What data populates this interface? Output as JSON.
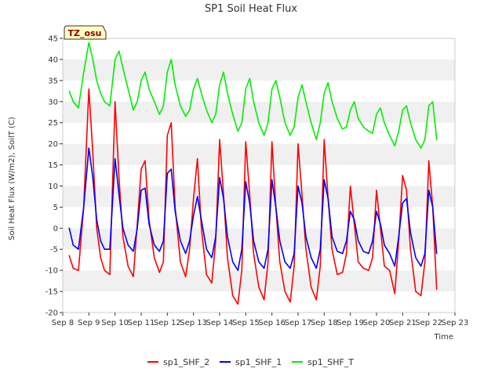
{
  "chart_data": {
    "type": "line",
    "title": "SP1 Soil Heat Flux",
    "xlabel": "Time",
    "ylabel": "Soil Heat Flux (W/m2), SoilT (C)",
    "timezone_label": "TZ_osu",
    "xlim": [
      8,
      23
    ],
    "ylim": [
      -20,
      45
    ],
    "x_ticks": [
      8,
      9,
      10,
      11,
      12,
      13,
      14,
      15,
      16,
      17,
      18,
      19,
      20,
      21,
      22,
      23
    ],
    "x_tick_labels": [
      "Sep 8",
      "Sep 9",
      "Sep 10",
      "Sep 11",
      "Sep 12",
      "Sep 13",
      "Sep 14",
      "Sep 15",
      "Sep 16",
      "Sep 17",
      "Sep 18",
      "Sep 19",
      "Sep 20",
      "Sep 21",
      "Sep 22",
      "Sep 23"
    ],
    "y_ticks": [
      -20,
      -15,
      -10,
      -5,
      0,
      5,
      10,
      15,
      20,
      25,
      30,
      35,
      40,
      45
    ],
    "grid": "horizontal alternating bands",
    "legend_position": "bottom-center",
    "series": [
      {
        "name": "sp1_SHF_2",
        "color": "#ff0000",
        "x": [
          8.25,
          8.4,
          8.6,
          8.8,
          9.0,
          9.15,
          9.3,
          9.45,
          9.6,
          9.8,
          10.0,
          10.15,
          10.3,
          10.5,
          10.7,
          10.85,
          11.0,
          11.15,
          11.3,
          11.5,
          11.7,
          11.85,
          12.0,
          12.15,
          12.3,
          12.5,
          12.7,
          12.85,
          13.0,
          13.15,
          13.3,
          13.5,
          13.7,
          13.85,
          14.0,
          14.15,
          14.3,
          14.5,
          14.7,
          14.85,
          15.0,
          15.15,
          15.3,
          15.5,
          15.7,
          15.85,
          16.0,
          16.15,
          16.3,
          16.5,
          16.7,
          16.85,
          17.0,
          17.15,
          17.3,
          17.5,
          17.7,
          17.85,
          18.0,
          18.15,
          18.3,
          18.5,
          18.7,
          18.85,
          19.0,
          19.15,
          19.3,
          19.5,
          19.7,
          19.85,
          20.0,
          20.15,
          20.3,
          20.5,
          20.7,
          20.85,
          21.0,
          21.15,
          21.3,
          21.5,
          21.7,
          21.85,
          22.0,
          22.15,
          22.3
        ],
        "y": [
          -6.5,
          -9.5,
          -10,
          5,
          33,
          18,
          0,
          -7,
          -10,
          -11,
          30,
          12,
          -2,
          -9,
          -11.5,
          1,
          14,
          16,
          2,
          -7,
          -10.5,
          -8,
          22,
          25,
          5,
          -8,
          -11.5,
          -5,
          7,
          16.5,
          0,
          -11,
          -13,
          -3,
          21,
          8,
          -7,
          -16,
          -18,
          -10,
          20.5,
          8,
          -6,
          -14,
          -17,
          -8,
          20.5,
          5,
          -8,
          -15,
          -17.5,
          -9,
          20,
          8,
          -5,
          -14,
          -17,
          -9,
          21,
          7,
          -5,
          -11,
          -10.5,
          -6,
          10,
          1,
          -8,
          -9.5,
          -10,
          -7,
          9,
          0,
          -9,
          -10,
          -15.5,
          -3,
          12.5,
          9,
          -5,
          -15,
          -16,
          -8,
          16,
          5,
          -14.5
        ]
      },
      {
        "name": "sp1_SHF_1",
        "color": "#0000ff",
        "x": [
          8.25,
          8.4,
          8.6,
          8.8,
          9.0,
          9.15,
          9.3,
          9.45,
          9.6,
          9.8,
          10.0,
          10.15,
          10.3,
          10.5,
          10.7,
          10.85,
          11.0,
          11.15,
          11.3,
          11.5,
          11.7,
          11.85,
          12.0,
          12.15,
          12.3,
          12.5,
          12.7,
          12.85,
          13.0,
          13.15,
          13.3,
          13.5,
          13.7,
          13.85,
          14.0,
          14.15,
          14.3,
          14.5,
          14.7,
          14.85,
          15.0,
          15.15,
          15.3,
          15.5,
          15.7,
          15.85,
          16.0,
          16.15,
          16.3,
          16.5,
          16.7,
          16.85,
          17.0,
          17.15,
          17.3,
          17.5,
          17.7,
          17.85,
          18.0,
          18.15,
          18.3,
          18.5,
          18.7,
          18.85,
          19.0,
          19.15,
          19.3,
          19.5,
          19.7,
          19.85,
          20.0,
          20.15,
          20.3,
          20.5,
          20.7,
          20.85,
          21.0,
          21.15,
          21.3,
          21.5,
          21.7,
          21.85,
          22.0,
          22.15,
          22.3
        ],
        "y": [
          0,
          -4,
          -5,
          5,
          19,
          12,
          2,
          -3,
          -5,
          -5,
          16.5,
          8,
          0,
          -4,
          -5.5,
          0,
          9,
          9.5,
          1,
          -4,
          -5.5,
          -3,
          13,
          14,
          4,
          -3,
          -6,
          -3,
          3,
          7.5,
          2,
          -5,
          -7,
          -2,
          12,
          7,
          -2,
          -8,
          -10,
          -5,
          11,
          6,
          -3,
          -8,
          -9.5,
          -5,
          11.5,
          5,
          -3,
          -8,
          -9.5,
          -6,
          10,
          6,
          -2,
          -7,
          -9.5,
          -5,
          11.5,
          7,
          -2,
          -5.5,
          -6,
          -3,
          4,
          2,
          -3,
          -5.5,
          -6,
          -3,
          4,
          1,
          -4,
          -6,
          -9,
          -2,
          6,
          7,
          -1,
          -7,
          -9,
          -6,
          9,
          5,
          -6
        ]
      },
      {
        "name": "sp1_SHF_T",
        "color": "#00ee00",
        "x": [
          8.25,
          8.4,
          8.6,
          8.8,
          9.0,
          9.15,
          9.3,
          9.45,
          9.6,
          9.8,
          10.0,
          10.15,
          10.3,
          10.5,
          10.7,
          10.85,
          11.0,
          11.15,
          11.3,
          11.5,
          11.7,
          11.85,
          12.0,
          12.15,
          12.3,
          12.5,
          12.7,
          12.85,
          13.0,
          13.15,
          13.3,
          13.5,
          13.7,
          13.85,
          14.0,
          14.15,
          14.3,
          14.5,
          14.7,
          14.85,
          15.0,
          15.15,
          15.3,
          15.5,
          15.7,
          15.85,
          16.0,
          16.15,
          16.3,
          16.5,
          16.7,
          16.85,
          17.0,
          17.15,
          17.3,
          17.5,
          17.7,
          17.85,
          18.0,
          18.15,
          18.3,
          18.5,
          18.7,
          18.85,
          19.0,
          19.15,
          19.3,
          19.5,
          19.7,
          19.85,
          20.0,
          20.15,
          20.3,
          20.5,
          20.7,
          20.85,
          21.0,
          21.15,
          21.3,
          21.5,
          21.7,
          21.85,
          22.0,
          22.15,
          22.3
        ],
        "y": [
          32.5,
          30,
          28.5,
          37,
          44,
          40,
          35,
          32,
          30,
          29,
          40,
          42,
          38,
          33,
          28,
          30,
          35,
          37,
          33,
          30,
          27,
          29,
          37,
          40,
          34,
          29,
          26.5,
          28,
          33,
          35.5,
          32,
          28,
          25,
          27,
          34,
          37,
          32,
          27,
          23,
          25,
          33,
          35.5,
          30,
          25,
          22,
          25,
          33,
          35,
          31,
          25,
          22,
          24,
          31,
          34,
          30,
          25,
          21,
          25,
          32,
          34.5,
          30,
          26,
          23.5,
          24,
          28,
          30,
          26,
          24,
          23,
          22.5,
          27,
          28.5,
          25,
          22,
          19.5,
          23,
          28,
          29,
          25,
          21,
          19,
          21,
          29,
          30,
          21
        ]
      }
    ]
  }
}
